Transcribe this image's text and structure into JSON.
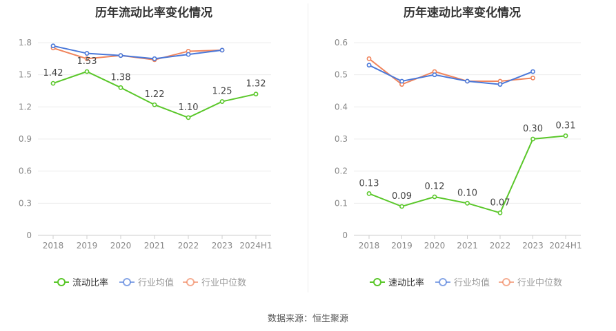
{
  "source_label": "数据来源：恒生聚源",
  "chart_data": [
    {
      "type": "line",
      "title": "历年流动比率变化情况",
      "categories": [
        "2018",
        "2019",
        "2020",
        "2021",
        "2022",
        "2023",
        "2024H1"
      ],
      "ylim": [
        0,
        1.8
      ],
      "yticks": [
        "0",
        "0.3",
        "0.6",
        "0.9",
        "1.2",
        "1.5",
        "1.8"
      ],
      "grid": true,
      "legend_position": "bottom",
      "series": [
        {
          "name": "流动比率",
          "color": "#5ac72a",
          "labels": true,
          "values": [
            1.42,
            1.53,
            1.38,
            1.22,
            1.1,
            1.25,
            1.32
          ],
          "value_labels": [
            "1.42",
            "1.53",
            "1.38",
            "1.22",
            "1.10",
            "1.25",
            "1.32"
          ]
        },
        {
          "name": "行业均值",
          "color": "#4a78d9",
          "labels": false,
          "values": [
            1.77,
            1.7,
            1.68,
            1.65,
            1.69,
            1.73,
            null
          ]
        },
        {
          "name": "行业中位数",
          "color": "#f0845c",
          "labels": false,
          "values": [
            1.75,
            1.65,
            1.68,
            1.64,
            1.72,
            1.73,
            null
          ]
        }
      ]
    },
    {
      "type": "line",
      "title": "历年速动比率变化情况",
      "categories": [
        "2018",
        "2019",
        "2020",
        "2021",
        "2022",
        "2023",
        "2024H1"
      ],
      "ylim": [
        0,
        0.6
      ],
      "yticks": [
        "0",
        "0.1",
        "0.2",
        "0.3",
        "0.4",
        "0.5",
        "0.6"
      ],
      "grid": true,
      "legend_position": "bottom",
      "series": [
        {
          "name": "速动比率",
          "color": "#5ac72a",
          "labels": true,
          "values": [
            0.13,
            0.09,
            0.12,
            0.1,
            0.07,
            0.3,
            0.31
          ],
          "value_labels": [
            "0.13",
            "0.09",
            "0.12",
            "0.10",
            "0.07",
            "0.30",
            "0.31"
          ]
        },
        {
          "name": "行业均值",
          "color": "#4a78d9",
          "labels": false,
          "values": [
            0.53,
            0.48,
            0.5,
            0.48,
            0.47,
            0.51,
            null
          ]
        },
        {
          "name": "行业中位数",
          "color": "#f0845c",
          "labels": false,
          "values": [
            0.55,
            0.47,
            0.51,
            0.48,
            0.48,
            0.49,
            null
          ]
        }
      ]
    }
  ]
}
